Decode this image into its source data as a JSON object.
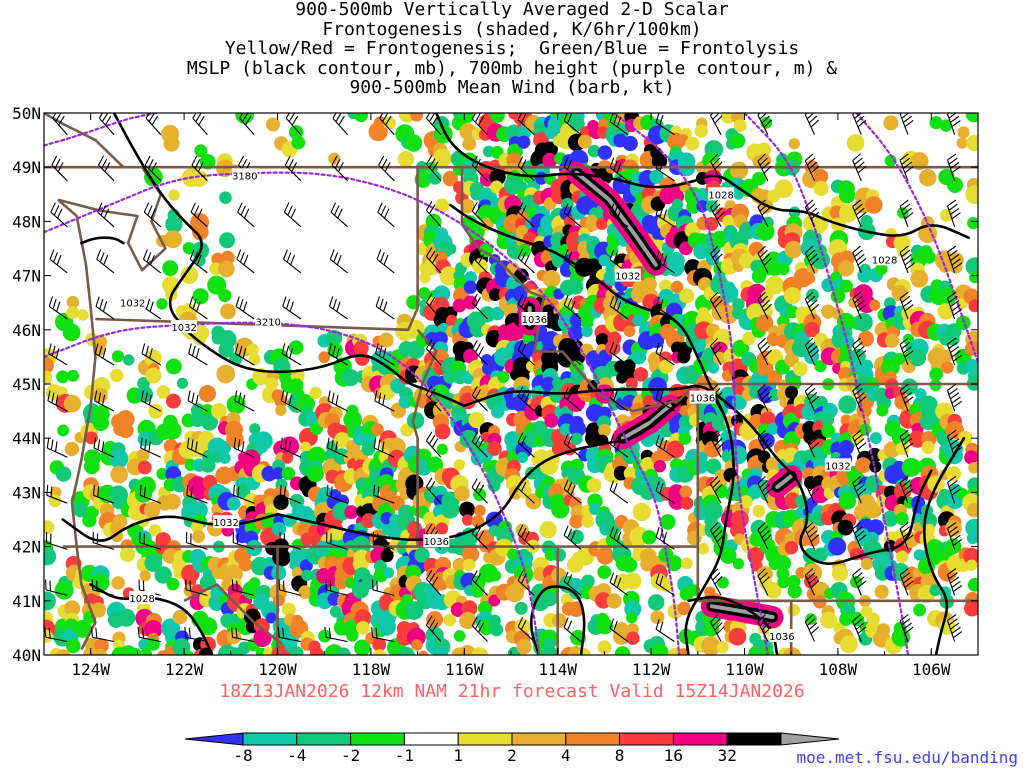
{
  "title_lines": [
    "900-500mb Vertically Averaged 2-D Scalar",
    "Frontogenesis (shaded, K/6hr/100km)",
    "Yellow/Red = Frontogenesis;  Green/Blue = Frontolysis",
    "MSLP (black contour, mb), 700mb height (purple contour, m) &",
    "900-500mb Mean Wind (barb, kt)"
  ],
  "footer": "18Z13JAN2026 12km NAM 21hr forecast Valid 15Z14JAN2026",
  "credit": "moe.met.fsu.edu/banding",
  "map": {
    "lat_labels": [
      "50N",
      "49N",
      "48N",
      "47N",
      "46N",
      "45N",
      "44N",
      "43N",
      "42N",
      "41N",
      "40N"
    ],
    "lon_labels": [
      "124W",
      "122W",
      "120W",
      "118W",
      "116W",
      "114W",
      "112W",
      "110W",
      "108W",
      "106W"
    ],
    "mslp_labels": [
      {
        "text": "1028",
        "lon": -110.5,
        "lat": 48.5
      },
      {
        "text": "1028",
        "lon": -107.0,
        "lat": 47.3
      },
      {
        "text": "1032",
        "lon": -123.1,
        "lat": 46.5
      },
      {
        "text": "1032",
        "lon": -122.0,
        "lat": 46.05
      },
      {
        "text": "1032",
        "lon": -112.5,
        "lat": 47.0
      },
      {
        "text": "1036",
        "lon": -114.5,
        "lat": 46.2
      },
      {
        "text": "1036",
        "lon": -110.9,
        "lat": 44.75
      },
      {
        "text": "1032",
        "lon": -108.0,
        "lat": 43.5
      },
      {
        "text": "1032",
        "lon": -121.1,
        "lat": 42.45
      },
      {
        "text": "1036",
        "lon": -116.6,
        "lat": 42.1
      },
      {
        "text": "1028",
        "lon": -122.9,
        "lat": 41.05
      },
      {
        "text": "1036",
        "lon": -109.2,
        "lat": 40.35
      }
    ],
    "height_labels": [
      {
        "text": "3180",
        "lon": -120.7,
        "lat": 48.85
      },
      {
        "text": "3210",
        "lon": -120.2,
        "lat": 46.15
      }
    ]
  },
  "colorbar": {
    "labels": [
      "-8",
      "-4",
      "-2",
      "-1",
      "1",
      "2",
      "4",
      "8",
      "16",
      "32"
    ],
    "colors": [
      "#3030ff",
      "#10c8a8",
      "#10c878",
      "#10e010",
      "#ffffff",
      "#e6dc32",
      "#e6af2d",
      "#f08228",
      "#fa3c3c",
      "#f00082",
      "#000000",
      "#a0a0a0"
    ]
  }
}
